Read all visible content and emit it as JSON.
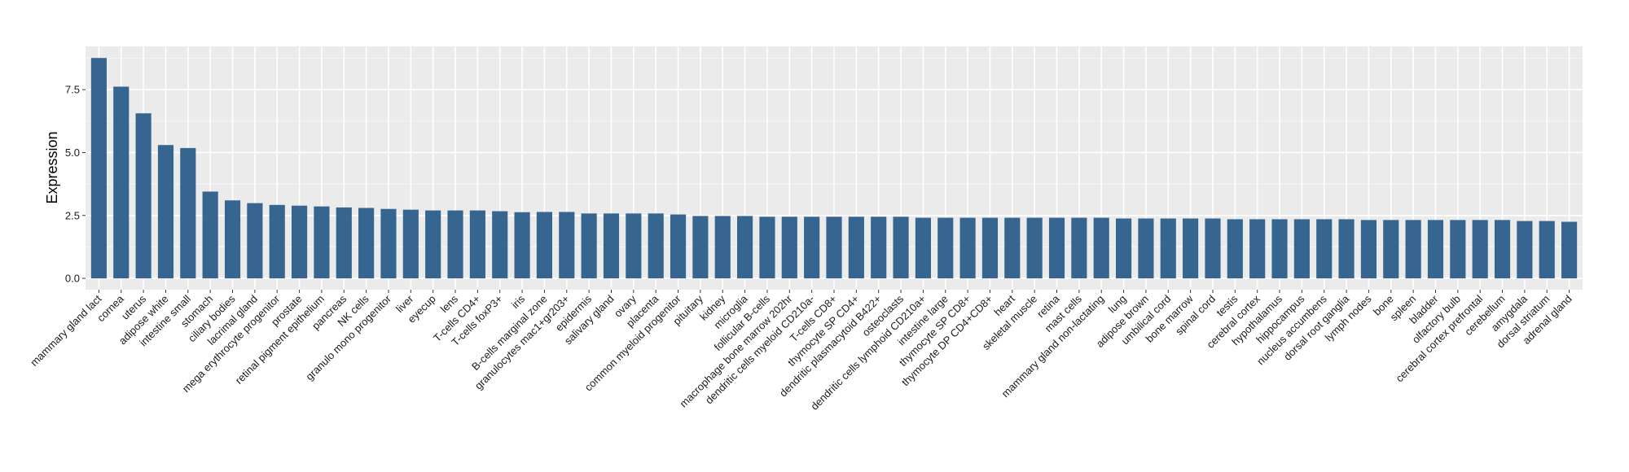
{
  "chart_data": {
    "type": "bar",
    "title": "",
    "xlabel": "",
    "ylabel": "Expression",
    "ylim": [
      -0.45,
      9.22
    ],
    "yticks": [
      0,
      2.5,
      5,
      7.5
    ],
    "ytick_labels": [
      "0.0",
      "2.5",
      "5.0",
      "7.5"
    ],
    "grid": true,
    "bar_color": "#366590",
    "panel_background": "#EBEBEB",
    "categories": [
      "mammary gland  lact",
      "cornea",
      "uterus",
      "adipose white",
      "intestine small",
      "stomach",
      "ciliary bodies",
      "lacrimal gland",
      "mega erythrocyte progenitor",
      "prostate",
      "retinal pigment epithelium",
      "pancreas",
      "NK cells",
      "granulo mono progenitor",
      "liver",
      "eyecup",
      "lens",
      "T-cells CD4+",
      "T-cells foxP3+",
      "iris",
      "B-cells marginal zone",
      "granulocytes mac1+gr203+",
      "epidermis",
      "salivary gland",
      "ovary",
      "placenta",
      "common myeloid progenitor",
      "pituitary",
      "kidney",
      "microglia",
      "follicular B-cells",
      "macrophage bone marrow 202hr",
      "dendritic cells myeloid CD210a-",
      "T-cells CD8+",
      "thymocyte SP CD4+",
      "dendritic plasmacytoid B422+",
      "osteoclasts",
      "dendritic cells lymphoid CD210a+",
      "intestine large",
      "thymocyte SP CD8+",
      "thymocyte DP CD4+CD8+",
      "heart",
      "skeletal muscle",
      "retina",
      "mast cells",
      "mammary gland non-lactating",
      "lung",
      "adipose brown",
      "umbilical cord",
      "bone marrow",
      "spinal cord",
      "testis",
      "cerebral cortex",
      "hypothalamus",
      "hippocampus",
      "nucleus accumbens",
      "dorsal root ganglia",
      "lymph nodes",
      "bone",
      "spleen",
      "bladder",
      "olfactory bulb",
      "cerebral cortex prefrontal",
      "cerebellum",
      "amygdala",
      "dorsal striatum",
      "adrenal gland"
    ],
    "values": [
      8.76,
      7.62,
      6.56,
      5.3,
      5.18,
      3.45,
      3.1,
      2.99,
      2.92,
      2.89,
      2.86,
      2.82,
      2.8,
      2.76,
      2.73,
      2.7,
      2.7,
      2.7,
      2.67,
      2.63,
      2.64,
      2.64,
      2.58,
      2.58,
      2.58,
      2.58,
      2.54,
      2.48,
      2.48,
      2.48,
      2.45,
      2.45,
      2.45,
      2.45,
      2.45,
      2.45,
      2.45,
      2.41,
      2.41,
      2.41,
      2.41,
      2.41,
      2.41,
      2.41,
      2.41,
      2.41,
      2.38,
      2.38,
      2.38,
      2.38,
      2.38,
      2.35,
      2.35,
      2.35,
      2.35,
      2.35,
      2.35,
      2.32,
      2.32,
      2.32,
      2.32,
      2.32,
      2.32,
      2.32,
      2.28,
      2.28,
      2.25
    ]
  }
}
